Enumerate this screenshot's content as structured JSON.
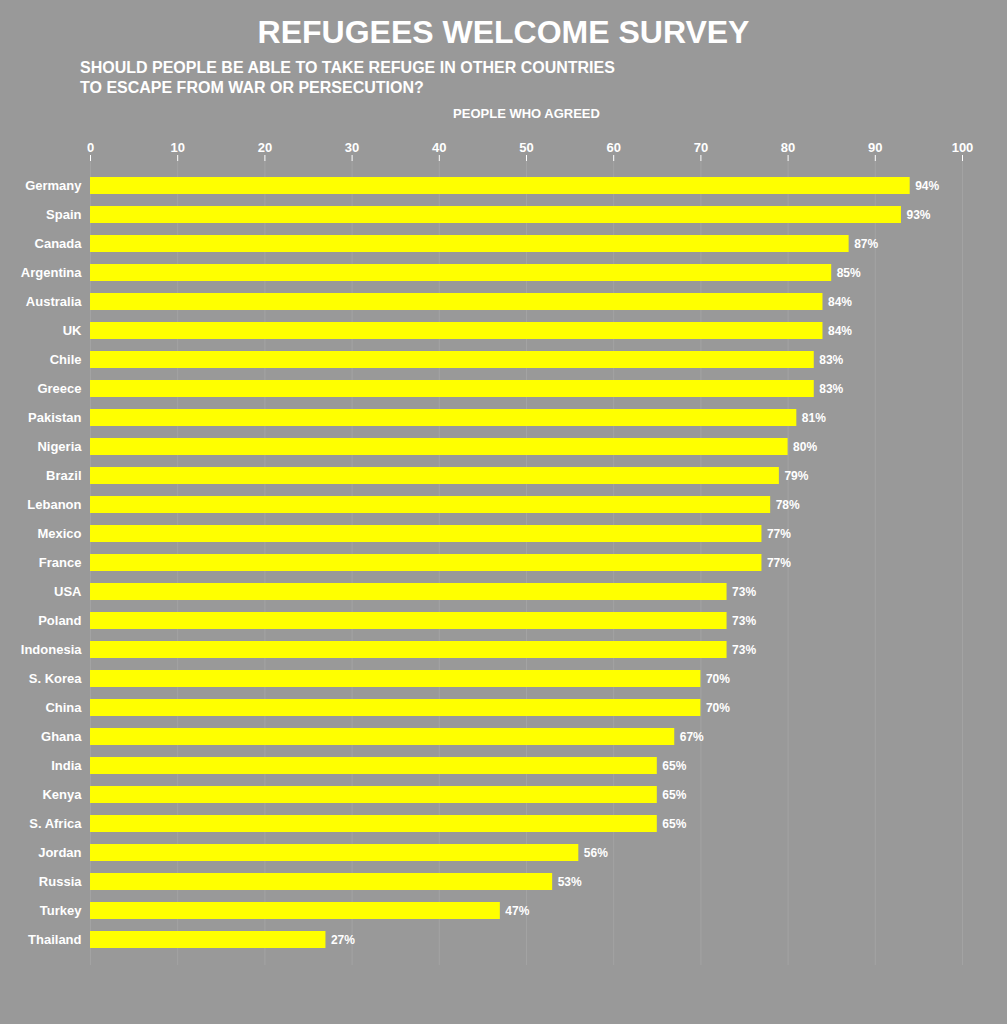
{
  "chart_data": {
    "type": "bar",
    "orientation": "horizontal",
    "title": "REFUGEES WELCOME SURVEY",
    "subtitle": [
      "SHOULD PEOPLE BE ABLE TO TAKE REFUGE IN OTHER COUNTRIES",
      "TO ESCAPE FROM WAR OR PERSECUTION?"
    ],
    "xlabel": "PEOPLE WHO AGREED",
    "categories": [
      "Germany",
      "Spain",
      "Canada",
      "Argentina",
      "Australia",
      "UK",
      "Chile",
      "Greece",
      "Pakistan",
      "Nigeria",
      "Brazil",
      "Lebanon",
      "Mexico",
      "France",
      "USA",
      "Poland",
      "Indonesia",
      "S. Korea",
      "China",
      "Ghana",
      "India",
      "Kenya",
      "S. Africa",
      "Jordan",
      "Russia",
      "Turkey",
      "Thailand"
    ],
    "values": [
      94,
      93,
      87,
      85,
      84,
      84,
      83,
      83,
      81,
      80,
      79,
      78,
      77,
      77,
      73,
      73,
      73,
      70,
      70,
      67,
      65,
      65,
      65,
      56,
      53,
      47,
      27
    ],
    "value_labels": [
      "94%",
      "93%",
      "87%",
      "85%",
      "84%",
      "84%",
      "83%",
      "83%",
      "81%",
      "80%",
      "79%",
      "78%",
      "77%",
      "77%",
      "73%",
      "73%",
      "73%",
      "70%",
      "70%",
      "67%",
      "65%",
      "65%",
      "65%",
      "56%",
      "53%",
      "47%",
      "27%"
    ],
    "color": "#FFFF00",
    "xlim": [
      0,
      100
    ],
    "xticks": [
      0,
      10,
      20,
      30,
      40,
      50,
      60,
      70,
      80,
      90,
      100
    ],
    "grid": true,
    "data_labels": true
  }
}
